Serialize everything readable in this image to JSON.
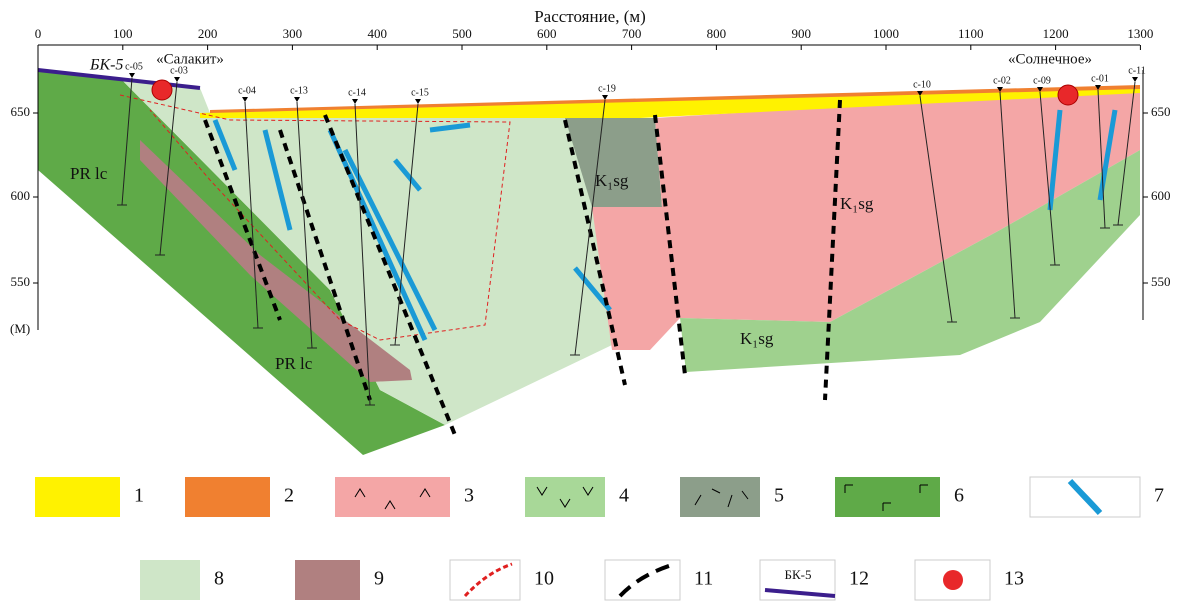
{
  "axis": {
    "title": "Расстояние, (м)",
    "x_ticks": [
      0,
      100,
      200,
      300,
      400,
      500,
      600,
      700,
      800,
      900,
      1000,
      1100,
      1200,
      1300
    ],
    "y_ticks_left": [
      650,
      600,
      550
    ],
    "y_ticks_right": [
      650,
      600,
      550
    ],
    "y_unit": "(М)"
  },
  "profile_label": "БК-5",
  "sites": [
    "«Салакит»",
    "«Солнечное»"
  ],
  "boreholes": [
    "c-05",
    "c-03",
    "c-04",
    "c-13",
    "c-14",
    "c-15",
    "c-19",
    "c-10",
    "c-02",
    "c-09",
    "c-01",
    "c-11"
  ],
  "units": [
    "PR lc",
    "PR lc",
    "K₁sg",
    "K₁sg",
    "K₁sg"
  ],
  "legend": [
    1,
    2,
    3,
    4,
    5,
    6,
    7,
    8,
    9,
    10,
    11,
    12,
    13
  ],
  "legend_profile_label": "БК-5"
}
